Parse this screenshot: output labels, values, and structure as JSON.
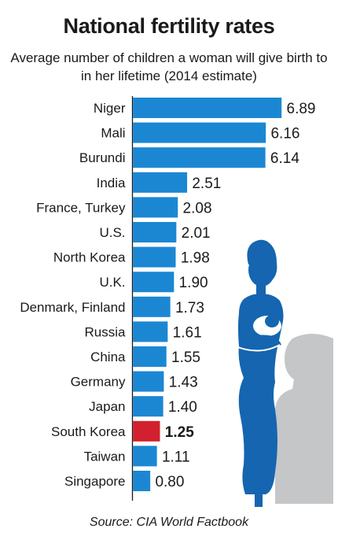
{
  "header": {
    "title": "National fertility rates",
    "subtitle": "Average number of children a woman will give birth to in her lifetime (2014 estimate)"
  },
  "footer": {
    "source": "Source: CIA World Factbook"
  },
  "colors": {
    "bar": "#1b87d3",
    "highlight": "#d2202f",
    "text": "#1a1a1a",
    "axis": "#1a1a1a",
    "figure": "#1565b0",
    "shadow": "#c4c6c8"
  },
  "decoration": {
    "icon": "mother-and-baby-silhouette-icon"
  },
  "chart_data": {
    "type": "bar",
    "orientation": "horizontal",
    "categories": [
      "Niger",
      "Mali",
      "Burundi",
      "India",
      "France, Turkey",
      "U.S.",
      "North Korea",
      "U.K.",
      "Denmark, Finland",
      "Russia",
      "China",
      "Germany",
      "Japan",
      "South Korea",
      "Taiwan",
      "Singapore"
    ],
    "values": [
      6.89,
      6.16,
      6.14,
      2.51,
      2.08,
      2.01,
      1.98,
      1.9,
      1.73,
      1.61,
      1.55,
      1.43,
      1.4,
      1.25,
      1.11,
      0.8
    ],
    "value_labels": [
      "6.89",
      "6.16",
      "6.14",
      "2.51",
      "2.08",
      "2.01",
      "1.98",
      "1.90",
      "1.73",
      "1.61",
      "1.55",
      "1.43",
      "1.40",
      "1.25",
      "1.11",
      "0.80"
    ],
    "highlight": "South Korea",
    "xlim": [
      0,
      6.89
    ],
    "grid": false,
    "legend": "none"
  }
}
